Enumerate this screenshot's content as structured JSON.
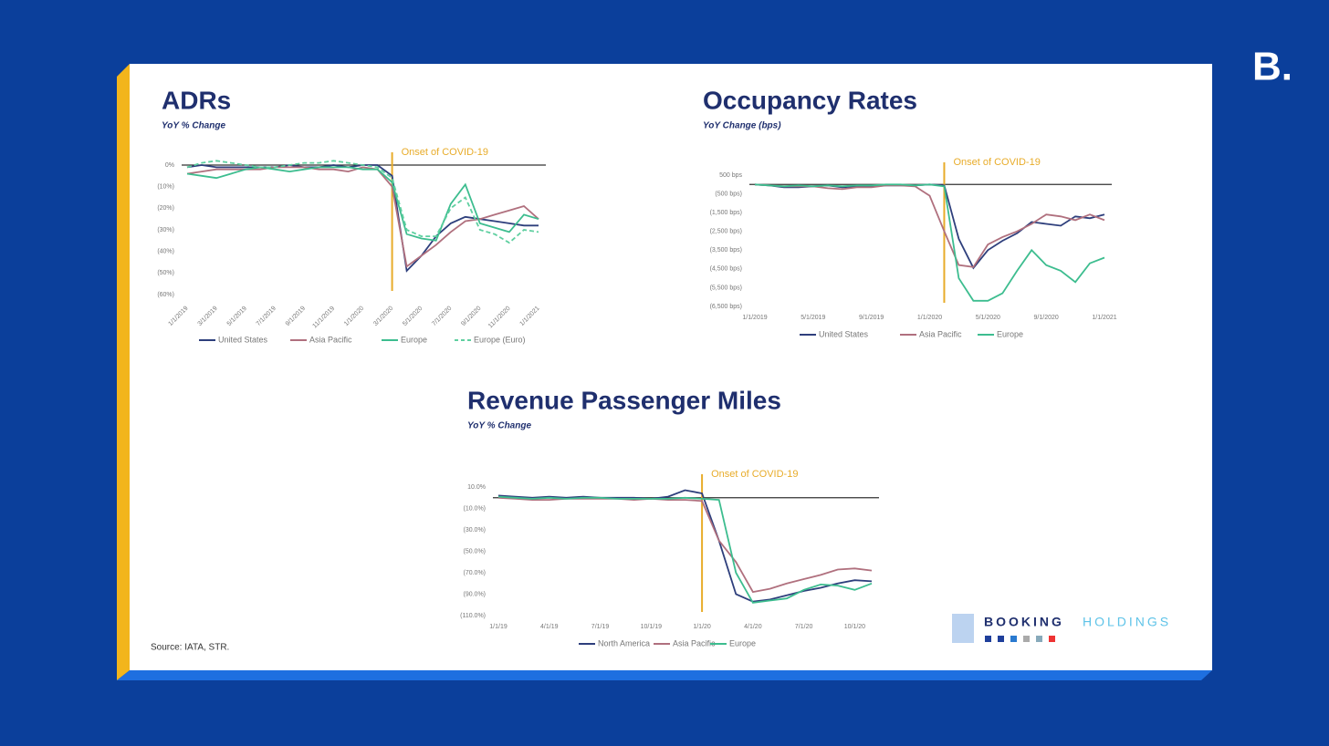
{
  "brand": "B.",
  "source": "Source: IATA, STR.",
  "logo": {
    "name_left": "BOOKING",
    "name_right": "HOLDINGS"
  },
  "chart_data": [
    {
      "type": "line",
      "title": "ADRs",
      "subtitle": "YoY % Change",
      "categories": [
        "1/1/2019",
        null,
        "3/1/2019",
        null,
        "5/1/2019",
        null,
        "7/1/2019",
        null,
        "9/1/2019",
        null,
        "11/1/2019",
        null,
        "1/1/2020",
        null,
        "3/1/2020",
        null,
        "5/1/2020",
        null,
        "7/1/2020",
        null,
        "9/1/2020",
        null,
        "11/1/2020",
        null,
        "1/1/2021"
      ],
      "ylim": [
        -60,
        0
      ],
      "yticks": [
        {
          "value": 0,
          "label": "0%"
        },
        {
          "value": -10,
          "label": "(10%)"
        },
        {
          "value": -20,
          "label": "(20%)"
        },
        {
          "value": -30,
          "label": "(30%)"
        },
        {
          "value": -40,
          "label": "(40%)"
        },
        {
          "value": -50,
          "label": "(50%)"
        },
        {
          "value": -60,
          "label": "(60%)"
        }
      ],
      "annotation": {
        "text": "Onset of COVID-19",
        "x": "3/1/2020"
      },
      "series": [
        {
          "name": "United States",
          "color": "#2e3f7c",
          "values": [
            -1,
            0,
            -1,
            -1,
            -1,
            -1,
            -1,
            0,
            -1,
            -1,
            0,
            -1,
            0,
            0,
            -5,
            -49,
            -42,
            -33,
            -27,
            -24,
            -25,
            -26,
            -27,
            -28,
            -28
          ]
        },
        {
          "name": "Asia Pacific",
          "color": "#b0707e",
          "values": [
            -4,
            -3,
            -2,
            -2,
            -2,
            -2,
            -1,
            -1,
            -1,
            -2,
            -2,
            -3,
            -1,
            -2,
            -10,
            -47,
            -42,
            -37,
            -31,
            -26,
            -25,
            -23,
            -21,
            -19,
            -25
          ]
        },
        {
          "name": "Europe",
          "color": "#3dbd8f",
          "values": [
            -4,
            -5,
            -6,
            -4,
            -2,
            -1,
            -2,
            -3,
            -2,
            -1,
            -1,
            -1,
            -2,
            -2,
            -8,
            -32,
            -34,
            -35,
            -18,
            -9,
            -27,
            -29,
            -31,
            -23,
            -25
          ]
        },
        {
          "name": "Europe (Euro)",
          "color": "#5fcfa0",
          "dashed": true,
          "values": [
            -1,
            1,
            2,
            1,
            0,
            -1,
            -1,
            0,
            1,
            1,
            2,
            1,
            0,
            -1,
            -6,
            -30,
            -33,
            -33,
            -20,
            -15,
            -30,
            -32,
            -36,
            -30,
            -31
          ]
        }
      ]
    },
    {
      "type": "line",
      "title": "Occupancy Rates",
      "subtitle": "YoY Change (bps)",
      "categories": [
        "1/1/2019",
        null,
        null,
        null,
        "5/1/2019",
        null,
        null,
        null,
        "9/1/2019",
        null,
        null,
        null,
        "1/1/2020",
        null,
        null,
        null,
        "5/1/2020",
        null,
        null,
        null,
        "9/1/2020",
        null,
        null,
        null,
        "1/1/2021"
      ],
      "ylim": [
        -6500,
        500
      ],
      "yticks": [
        {
          "value": 500,
          "label": "500 bps"
        },
        {
          "value": -500,
          "label": "(500 bps)"
        },
        {
          "value": -1500,
          "label": "(1,500 bps)"
        },
        {
          "value": -2500,
          "label": "(2,500 bps)"
        },
        {
          "value": -3500,
          "label": "(3,500 bps)"
        },
        {
          "value": -4500,
          "label": "(4,500 bps)"
        },
        {
          "value": -5500,
          "label": "(5,500 bps)"
        },
        {
          "value": -6500,
          "label": "(6,500 bps)"
        }
      ],
      "annotation": {
        "text": "Onset of COVID-19",
        "x": "2/1/2020"
      },
      "series": [
        {
          "name": "United States",
          "color": "#2e3f7c",
          "values": [
            0,
            -50,
            -150,
            -150,
            -100,
            -50,
            -150,
            -100,
            -100,
            -50,
            -50,
            -50,
            0,
            -50,
            -2900,
            -4450,
            -3500,
            -3000,
            -2600,
            -2000,
            -2100,
            -2200,
            -1700,
            -1800,
            -1600
          ]
        },
        {
          "name": "Asia Pacific",
          "color": "#b0707e",
          "values": [
            0,
            -50,
            -100,
            -100,
            -100,
            -200,
            -250,
            -150,
            -150,
            -50,
            -50,
            -100,
            -600,
            -2500,
            -4300,
            -4400,
            -3200,
            -2800,
            -2500,
            -2100,
            -1600,
            -1700,
            -1900,
            -1600,
            -1900
          ]
        },
        {
          "name": "Europe",
          "color": "#3dbd8f",
          "values": [
            0,
            -50,
            -100,
            -50,
            -100,
            -50,
            -100,
            -50,
            -50,
            0,
            0,
            -50,
            0,
            -100,
            -5000,
            -6200,
            -6200,
            -5800,
            -4600,
            -3500,
            -4300,
            -4600,
            -5200,
            -4200,
            -3900
          ]
        }
      ]
    },
    {
      "type": "line",
      "title": "Revenue Passenger Miles",
      "subtitle": "YoY % Change",
      "categories": [
        "1/1/19",
        null,
        null,
        "4/1/19",
        null,
        null,
        "7/1/19",
        null,
        null,
        "10/1/19",
        null,
        null,
        "1/1/20",
        null,
        null,
        "4/1/20",
        null,
        null,
        "7/1/20",
        null,
        null,
        "10/1/20",
        null
      ],
      "ylim": [
        -110,
        10
      ],
      "yticks": [
        {
          "value": 10,
          "label": "10.0%"
        },
        {
          "value": -10,
          "label": "(10.0%)"
        },
        {
          "value": -30,
          "label": "(30.0%)"
        },
        {
          "value": -50,
          "label": "(50.0%)"
        },
        {
          "value": -70,
          "label": "(70.0%)"
        },
        {
          "value": -90,
          "label": "(90.0%)"
        },
        {
          "value": -110,
          "label": "(110.0%)"
        }
      ],
      "annotation": {
        "text": "Onset of COVID-19",
        "x": "1/1/20"
      },
      "series": [
        {
          "name": "North America",
          "color": "#2e3f7c",
          "values": [
            2,
            1,
            0,
            1,
            0,
            1,
            0,
            0,
            0,
            -1,
            1,
            7,
            4,
            -40,
            -90,
            -97,
            -95,
            -91,
            -87,
            -84,
            -80,
            -77,
            -78
          ]
        },
        {
          "name": "Asia Pacific",
          "color": "#b0707e",
          "values": [
            0,
            -1,
            -2,
            -2,
            -1,
            -1,
            -1,
            -1,
            -2,
            -1,
            -2,
            -2,
            -3,
            -40,
            -60,
            -88,
            -85,
            -80,
            -76,
            -72,
            -67,
            -66,
            -68
          ]
        },
        {
          "name": "Europe",
          "color": "#3dbd8f",
          "values": [
            1,
            0,
            -1,
            0,
            -1,
            0,
            0,
            -1,
            -1,
            -1,
            -1,
            0,
            -1,
            -2,
            -70,
            -98,
            -96,
            -94,
            -86,
            -81,
            -82,
            -86,
            -80
          ]
        }
      ]
    }
  ]
}
